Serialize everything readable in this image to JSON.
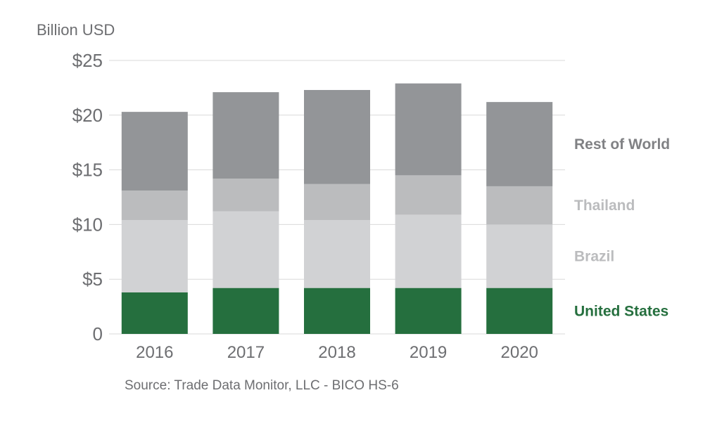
{
  "chart_data": {
    "type": "bar",
    "stacked": true,
    "ylabel": "Billion USD",
    "ylim": [
      0,
      25
    ],
    "yticks": [
      0,
      5,
      10,
      15,
      20,
      25
    ],
    "ytick_labels": [
      "0",
      "$5",
      "$10",
      "$15",
      "$20",
      "$25"
    ],
    "categories": [
      "2016",
      "2017",
      "2018",
      "2019",
      "2020"
    ],
    "series": [
      {
        "name": "United States",
        "values": [
          3.8,
          4.2,
          4.2,
          4.2,
          4.2
        ],
        "color": "#256f3e"
      },
      {
        "name": "Brazil",
        "values": [
          6.6,
          7.0,
          6.2,
          6.7,
          5.8
        ],
        "color": "#d1d2d4"
      },
      {
        "name": "Thailand",
        "values": [
          2.7,
          3.0,
          3.3,
          3.6,
          3.5
        ],
        "color": "#bbbcbe"
      },
      {
        "name": "Rest of World",
        "values": [
          7.2,
          7.9,
          8.6,
          8.4,
          7.7
        ],
        "color": "#939598"
      }
    ],
    "legend_placement": "right",
    "grid": true,
    "source": "Source: Trade Data Monitor, LLC - BICO HS-6"
  }
}
